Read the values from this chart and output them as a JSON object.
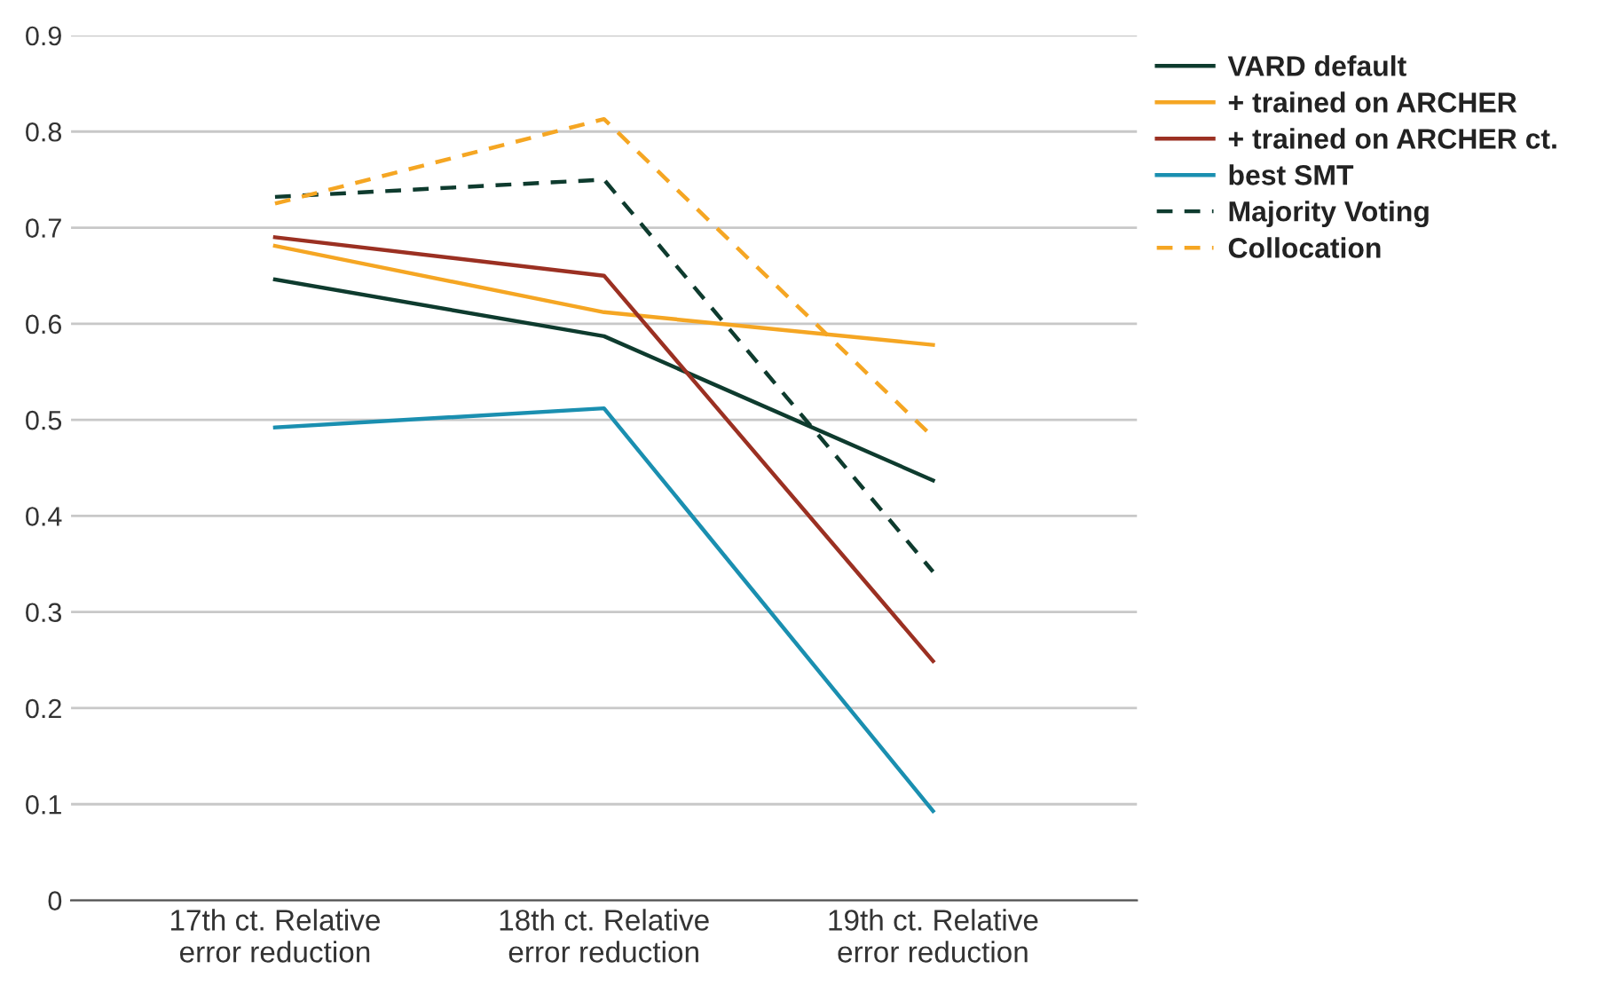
{
  "chart_data": {
    "type": "line",
    "categories": [
      "17th ct. Relative\nerror reduction",
      "18th ct. Relative\nerror reduction",
      "19th ct. Relative\nerror reduction"
    ],
    "series": [
      {
        "name": "VARD default",
        "color": "#0e3b2e",
        "values": [
          0.646,
          0.587,
          0.437
        ]
      },
      {
        "name": "+ trained on ARCHER",
        "color": "#f5a623",
        "values": [
          0.681,
          0.612,
          0.578
        ]
      },
      {
        "name": "+ trained on ARCHER ct.",
        "color": "#9b3022",
        "values": [
          0.69,
          0.65,
          0.249
        ]
      },
      {
        "name": "best SMT",
        "color": "#1a8fb0",
        "values": [
          0.492,
          0.512,
          0.093
        ]
      },
      {
        "name": "Majority Voting",
        "color": "#0e3b2e",
        "values": [
          0.732,
          0.75,
          0.342
        ],
        "line_style": "dashed"
      },
      {
        "name": "Collocation",
        "color": "#f5a623",
        "values": [
          0.725,
          0.813,
          0.482
        ],
        "line_style": "dashed"
      }
    ],
    "ylim": [
      0,
      0.9
    ],
    "yticks": [
      0,
      0.1,
      0.2,
      0.3,
      0.4,
      0.5,
      0.6,
      0.7,
      0.8,
      0.9
    ],
    "grid": "y",
    "legend": "top right",
    "marker": "none",
    "line_style": "solid"
  }
}
